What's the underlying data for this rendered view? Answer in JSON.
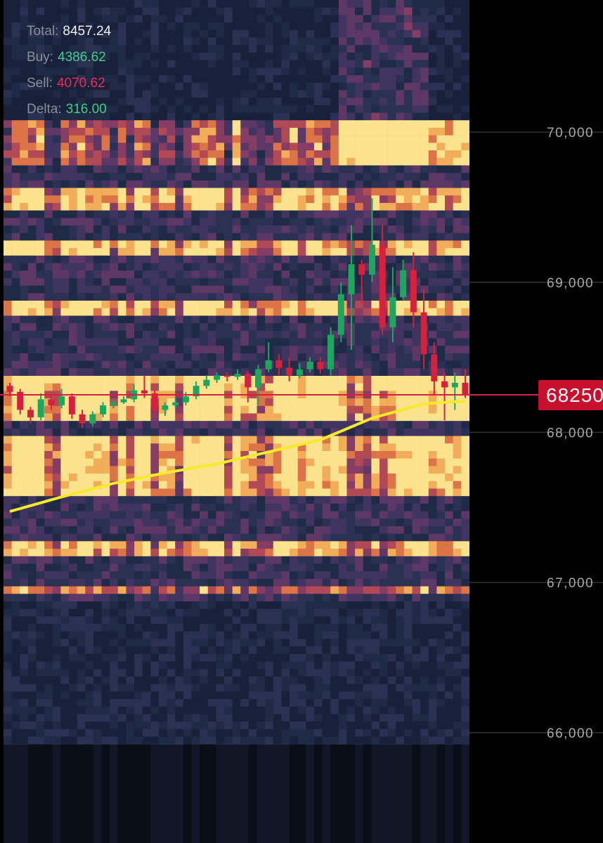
{
  "chart_data": {
    "type": "candlestick",
    "stats": [
      {
        "label": "Total:",
        "value": "8457.24",
        "color": "#f2f2f2"
      },
      {
        "label": "Buy:",
        "value": "4386.62",
        "color": "#3ed08a"
      },
      {
        "label": "Sell:",
        "value": "4070.62",
        "color": "#e8305a"
      },
      {
        "label": "Delta:",
        "value": "316.00",
        "color": "#3ed08a"
      }
    ],
    "ylim": [
      65920,
      70880
    ],
    "yticks": [
      {
        "value": 70000,
        "label": "70,000"
      },
      {
        "value": 69000,
        "label": "69,000"
      },
      {
        "value": 68000,
        "label": "68,000"
      },
      {
        "value": 67000,
        "label": "67,000"
      },
      {
        "value": 66000,
        "label": "66,000"
      }
    ],
    "current_price": {
      "value": 68250,
      "label": "68250"
    },
    "up_color": "#1fa65e",
    "down_color": "#d4213d",
    "ma_color": "#f7ea2a",
    "open": [
      68310,
      68270,
      68150,
      68100,
      68220,
      68180,
      68240,
      68120,
      68060,
      68120,
      68180,
      68200,
      68220,
      68280,
      68260,
      68150,
      68180,
      68200,
      68240,
      68310,
      68350,
      68380,
      68370,
      68390,
      68300,
      68420,
      68480,
      68430,
      68380,
      68420,
      68470,
      68420,
      68650,
      68920,
      69120,
      69050,
      69250,
      68700,
      68900,
      69080,
      68800,
      68520,
      68340,
      68300,
      68330
    ],
    "high": [
      68330,
      68290,
      68170,
      68260,
      68250,
      68290,
      68260,
      68150,
      68140,
      68200,
      68220,
      68240,
      68320,
      68380,
      68280,
      68200,
      68230,
      68270,
      68340,
      68380,
      68400,
      68400,
      68420,
      68410,
      68450,
      68600,
      68520,
      68500,
      68460,
      68500,
      68500,
      68700,
      69000,
      69380,
      69150,
      69560,
      69380,
      69100,
      69150,
      69200,
      68950,
      68600,
      68400,
      68400,
      68420
    ],
    "low": [
      68240,
      68120,
      68060,
      68080,
      68150,
      68160,
      68090,
      68030,
      68040,
      68100,
      68160,
      68190,
      68200,
      68230,
      68120,
      68110,
      68160,
      68180,
      68220,
      68290,
      68330,
      68340,
      68350,
      68200,
      68180,
      68400,
      68380,
      68340,
      68360,
      68400,
      68390,
      68380,
      68600,
      68550,
      68850,
      69000,
      68650,
      68600,
      68880,
      68700,
      68420,
      68250,
      68080,
      68150,
      68230
    ],
    "close": [
      68270,
      68150,
      68100,
      68220,
      68180,
      68240,
      68120,
      68060,
      68120,
      68180,
      68200,
      68220,
      68280,
      68260,
      68150,
      68180,
      68200,
      68240,
      68310,
      68350,
      68380,
      68370,
      68390,
      68300,
      68420,
      68480,
      68430,
      68380,
      68420,
      68470,
      68420,
      68650,
      68920,
      69120,
      69050,
      69250,
      68700,
      68900,
      69080,
      68800,
      68520,
      68340,
      68300,
      68330,
      68250
    ],
    "ma": [
      67473,
      67492,
      67512,
      67531,
      67551,
      67570,
      67588,
      67606,
      67624,
      67642,
      67660,
      67674,
      67688,
      67702,
      67716,
      67730,
      67742,
      67754,
      67766,
      67778,
      67790,
      67806,
      67822,
      67838,
      67854,
      67870,
      67886,
      67902,
      67918,
      67934,
      67950,
      67979,
      68008,
      68037,
      68066,
      68095,
      68114,
      68133,
      68152,
      68171,
      68190,
      68195,
      68200,
      68204,
      68208
    ]
  }
}
